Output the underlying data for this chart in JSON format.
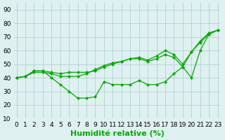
{
  "x": [
    0,
    1,
    2,
    3,
    4,
    5,
    6,
    7,
    8,
    9,
    10,
    11,
    12,
    13,
    14,
    15,
    16,
    17,
    18,
    19,
    20,
    21,
    22,
    23
  ],
  "line1": [
    40,
    41,
    45,
    45,
    44,
    43,
    44,
    44,
    44,
    45,
    48,
    50,
    52,
    54,
    54,
    52,
    54,
    57,
    55,
    48,
    59,
    66,
    72,
    75
  ],
  "line2": [
    40,
    41,
    45,
    45,
    40,
    35,
    30,
    25,
    25,
    26,
    37,
    35,
    35,
    35,
    38,
    35,
    35,
    37,
    43,
    48,
    40,
    60,
    72,
    75
  ],
  "line3": [
    40,
    41,
    44,
    44,
    43,
    41,
    41,
    41,
    43,
    46,
    49,
    51,
    52,
    54,
    55,
    53,
    56,
    60,
    57,
    50,
    59,
    67,
    73,
    75
  ],
  "bg_color": "#dff0f0",
  "grid_color": "#aacccc",
  "line_color": "#00aa00",
  "marker": "D",
  "markersize": 2.5,
  "linewidth": 0.9,
  "xlabel": "Humidité relative (%)",
  "xlabel_color": "#00aa00",
  "xlabel_fontsize": 8,
  "tick_fontsize": 6.5,
  "ylim": [
    10,
    95
  ],
  "yticks": [
    10,
    20,
    30,
    40,
    50,
    60,
    70,
    80,
    90
  ],
  "xlim": [
    -0.3,
    23.3
  ],
  "xticks": [
    0,
    1,
    2,
    3,
    4,
    5,
    6,
    7,
    8,
    9,
    10,
    11,
    12,
    13,
    14,
    15,
    16,
    17,
    18,
    19,
    20,
    21,
    22,
    23
  ]
}
